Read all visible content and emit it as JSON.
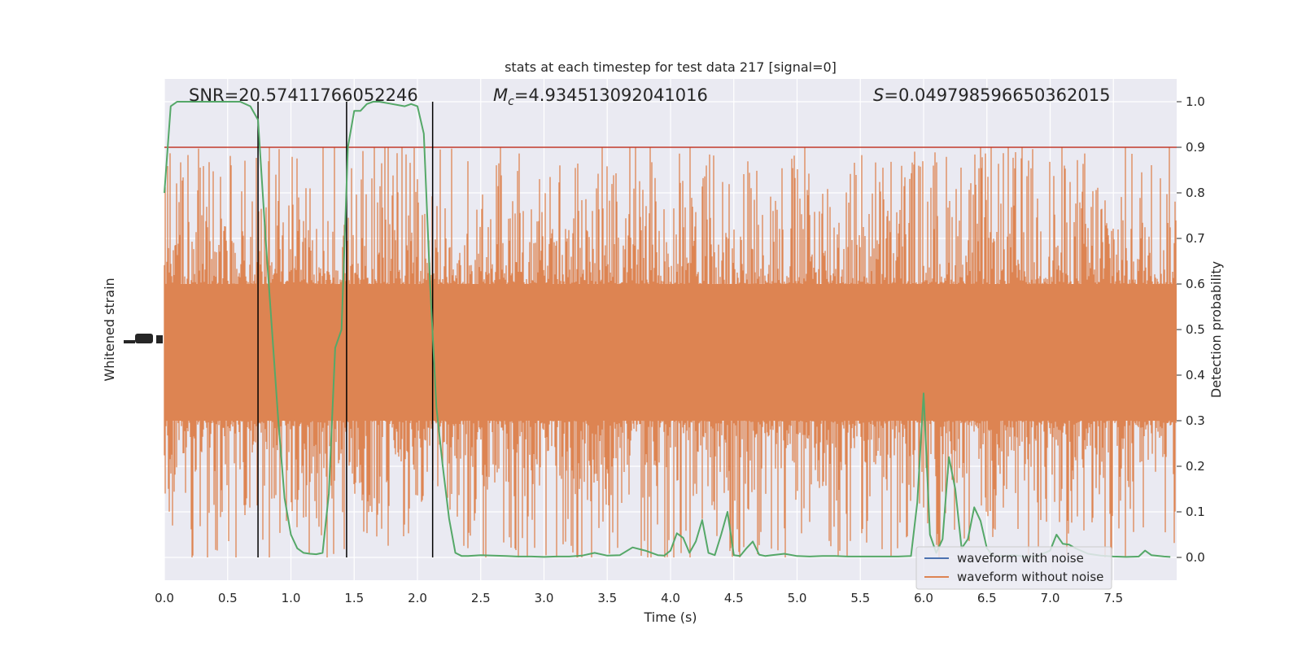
{
  "chart_data": {
    "type": "line",
    "title": "stats at each timestep for test data 217 [signal=0]",
    "xlabel": "Time (s)",
    "ylabel_left": "Whitened strain",
    "ylabel_right": "Detection probability",
    "xlim": [
      0,
      8
    ],
    "ylim_right": [
      -0.05,
      1.05
    ],
    "x_ticks": [
      "0.0",
      "0.5",
      "1.0",
      "1.5",
      "2.0",
      "2.5",
      "3.0",
      "3.5",
      "4.0",
      "4.5",
      "5.0",
      "5.5",
      "6.0",
      "6.5",
      "7.0",
      "7.5"
    ],
    "y_ticks_right": [
      "0.0",
      "0.1",
      "0.2",
      "0.3",
      "0.4",
      "0.5",
      "0.6",
      "0.7",
      "0.8",
      "0.9",
      "1.0"
    ],
    "grid": true,
    "annotations": {
      "snr": "SNR=20.57411766052246",
      "mc_symbol": "M",
      "mc_sub": "c",
      "mc_value": "=4.934513092041016",
      "s_symbol": "S",
      "s_value": "=0.049798596650362015"
    },
    "threshold": {
      "value": 0.9,
      "color": "#c0392b"
    },
    "vertical_lines_x": [
      0.74,
      1.44,
      2.12
    ],
    "legend": {
      "position": "lower-right",
      "entries": [
        {
          "label": "waveform with noise",
          "color": "#4c72b0"
        },
        {
          "label": "waveform without noise",
          "color": "#dd8452"
        }
      ]
    },
    "series": [
      {
        "name": "waveform without noise",
        "color": "#dd8452",
        "center": 0.48,
        "band_core": [
          0.3,
          0.6
        ],
        "envelope": [
          0.0,
          0.9
        ]
      },
      {
        "name": "detection probability",
        "color": "#55a868",
        "x": [
          0.0,
          0.05,
          0.1,
          0.2,
          0.3,
          0.4,
          0.5,
          0.6,
          0.68,
          0.74,
          0.8,
          0.9,
          0.95,
          1.0,
          1.05,
          1.1,
          1.15,
          1.2,
          1.25,
          1.3,
          1.35,
          1.4,
          1.45,
          1.5,
          1.55,
          1.6,
          1.65,
          1.7,
          1.8,
          1.9,
          1.95,
          2.0,
          2.05,
          2.1,
          2.15,
          2.2,
          2.25,
          2.3,
          2.35,
          2.4,
          2.5,
          2.6,
          2.7,
          2.8,
          2.9,
          3.0,
          3.1,
          3.2,
          3.3,
          3.4,
          3.5,
          3.6,
          3.7,
          3.8,
          3.9,
          3.95,
          4.0,
          4.05,
          4.1,
          4.15,
          4.2,
          4.25,
          4.3,
          4.35,
          4.4,
          4.45,
          4.5,
          4.55,
          4.6,
          4.65,
          4.7,
          4.75,
          4.8,
          4.9,
          5.0,
          5.1,
          5.2,
          5.3,
          5.4,
          5.5,
          5.6,
          5.7,
          5.8,
          5.9,
          5.95,
          6.0,
          6.05,
          6.1,
          6.15,
          6.2,
          6.25,
          6.3,
          6.35,
          6.4,
          6.45,
          6.5,
          6.55,
          6.6,
          6.65,
          6.7,
          6.8,
          6.9,
          7.0,
          7.05,
          7.1,
          7.15,
          7.2,
          7.3,
          7.4,
          7.5,
          7.6,
          7.7,
          7.75,
          7.8,
          7.9,
          7.95
        ],
        "y": [
          0.8,
          0.99,
          1.0,
          1.0,
          1.0,
          1.0,
          1.0,
          1.0,
          0.99,
          0.96,
          0.7,
          0.3,
          0.13,
          0.05,
          0.02,
          0.01,
          0.008,
          0.007,
          0.01,
          0.14,
          0.46,
          0.5,
          0.9,
          0.98,
          0.98,
          0.995,
          1.0,
          1.0,
          0.995,
          0.99,
          0.995,
          0.99,
          0.93,
          0.6,
          0.33,
          0.2,
          0.085,
          0.01,
          0.003,
          0.003,
          0.005,
          0.004,
          0.003,
          0.002,
          0.002,
          0.001,
          0.002,
          0.002,
          0.004,
          0.01,
          0.004,
          0.005,
          0.022,
          0.015,
          0.005,
          0.004,
          0.015,
          0.053,
          0.043,
          0.01,
          0.035,
          0.082,
          0.01,
          0.005,
          0.05,
          0.1,
          0.005,
          0.003,
          0.02,
          0.035,
          0.006,
          0.003,
          0.005,
          0.008,
          0.003,
          0.002,
          0.003,
          0.003,
          0.002,
          0.002,
          0.002,
          0.002,
          0.002,
          0.003,
          0.12,
          0.36,
          0.05,
          0.01,
          0.04,
          0.22,
          0.15,
          0.02,
          0.04,
          0.11,
          0.08,
          0.02,
          0.003,
          0.003,
          0.003,
          0.005,
          0.002,
          0.003,
          0.015,
          0.05,
          0.03,
          0.028,
          0.02,
          0.008,
          0.004,
          0.002,
          0.001,
          0.002,
          0.015,
          0.005,
          0.002,
          0.001
        ]
      }
    ]
  }
}
